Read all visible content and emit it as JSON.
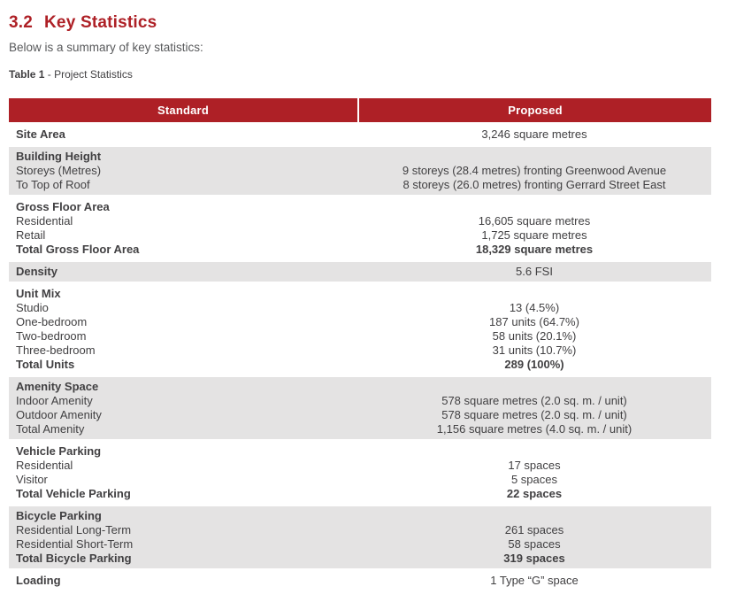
{
  "page": {
    "section_number": "3.2",
    "title": "Key Statistics",
    "subtitle": "Below is a summary of key statistics:",
    "caption_bold": "Table 1",
    "caption_rest": " - Project Statistics"
  },
  "colors": {
    "accent_red": "#AE2026",
    "row_shade_gray": "#E4E3E3",
    "body_text": "#414042",
    "header_text": "#FFFFFF"
  },
  "table": {
    "columns": [
      "Standard",
      "Proposed"
    ],
    "rows": [
      {
        "shade": false,
        "lines": [
          {
            "label": "Site Area",
            "label_bold": true,
            "value": "3,246 square metres",
            "value_bold": false
          }
        ]
      },
      {
        "shade": true,
        "lines": [
          {
            "label": "Building Height",
            "label_bold": true,
            "value": "",
            "value_bold": false
          },
          {
            "label": "Storeys (Metres)",
            "label_bold": false,
            "value": "9 storeys (28.4 metres) fronting Greenwood Avenue",
            "value_bold": false
          },
          {
            "label": "To Top of Roof",
            "label_bold": false,
            "value": "8 storeys (26.0 metres) fronting Gerrard Street East",
            "value_bold": false
          }
        ]
      },
      {
        "shade": false,
        "lines": [
          {
            "label": "Gross Floor Area",
            "label_bold": true,
            "value": "",
            "value_bold": false
          },
          {
            "label": "Residential",
            "label_bold": false,
            "value": "16,605 square metres",
            "value_bold": false
          },
          {
            "label": "Retail",
            "label_bold": false,
            "value": "1,725 square metres",
            "value_bold": false
          },
          {
            "label": "Total Gross Floor Area",
            "label_bold": true,
            "value": "18,329 square metres",
            "value_bold": true
          }
        ]
      },
      {
        "shade": true,
        "lines": [
          {
            "label": "Density",
            "label_bold": true,
            "value": "5.6 FSI",
            "value_bold": false
          }
        ]
      },
      {
        "shade": false,
        "lines": [
          {
            "label": "Unit Mix",
            "label_bold": true,
            "value": "",
            "value_bold": false
          },
          {
            "label": "Studio",
            "label_bold": false,
            "value": "13 (4.5%)",
            "value_bold": false
          },
          {
            "label": "One-bedroom",
            "label_bold": false,
            "value": "187 units (64.7%)",
            "value_bold": false
          },
          {
            "label": "Two-bedroom",
            "label_bold": false,
            "value": "58 units (20.1%)",
            "value_bold": false
          },
          {
            "label": "Three-bedroom",
            "label_bold": false,
            "value": "31 units (10.7%)",
            "value_bold": false
          },
          {
            "label": "Total Units",
            "label_bold": true,
            "value": "289 (100%)",
            "value_bold": true
          }
        ]
      },
      {
        "shade": true,
        "lines": [
          {
            "label": "Amenity Space",
            "label_bold": true,
            "value": "",
            "value_bold": false
          },
          {
            "label": "Indoor Amenity",
            "label_bold": false,
            "value": "578 square metres (2.0 sq. m. / unit)",
            "value_bold": false
          },
          {
            "label": "Outdoor Amenity",
            "label_bold": false,
            "value": "578 square metres (2.0 sq. m. / unit)",
            "value_bold": false
          },
          {
            "label": "Total Amenity",
            "label_bold": false,
            "value": "1,156 square metres (4.0 sq. m. / unit)",
            "value_bold": false
          }
        ]
      },
      {
        "shade": false,
        "lines": [
          {
            "label": "Vehicle Parking",
            "label_bold": true,
            "value": "",
            "value_bold": false
          },
          {
            "label": "Residential",
            "label_bold": false,
            "value": "17 spaces",
            "value_bold": false
          },
          {
            "label": "Visitor",
            "label_bold": false,
            "value": "5 spaces",
            "value_bold": false
          },
          {
            "label": "Total Vehicle Parking",
            "label_bold": true,
            "value": "22 spaces",
            "value_bold": true
          }
        ]
      },
      {
        "shade": true,
        "lines": [
          {
            "label": "Bicycle Parking",
            "label_bold": true,
            "value": "",
            "value_bold": false
          },
          {
            "label": "Residential Long-Term",
            "label_bold": false,
            "value": "261 spaces",
            "value_bold": false
          },
          {
            "label": "Residential Short-Term",
            "label_bold": false,
            "value": "58 spaces",
            "value_bold": false
          },
          {
            "label": "Total Bicycle Parking",
            "label_bold": true,
            "value": "319 spaces",
            "value_bold": true
          }
        ]
      },
      {
        "shade": false,
        "lines": [
          {
            "label": "Loading",
            "label_bold": true,
            "value": "1 Type “G” space",
            "value_bold": false
          }
        ]
      }
    ]
  }
}
